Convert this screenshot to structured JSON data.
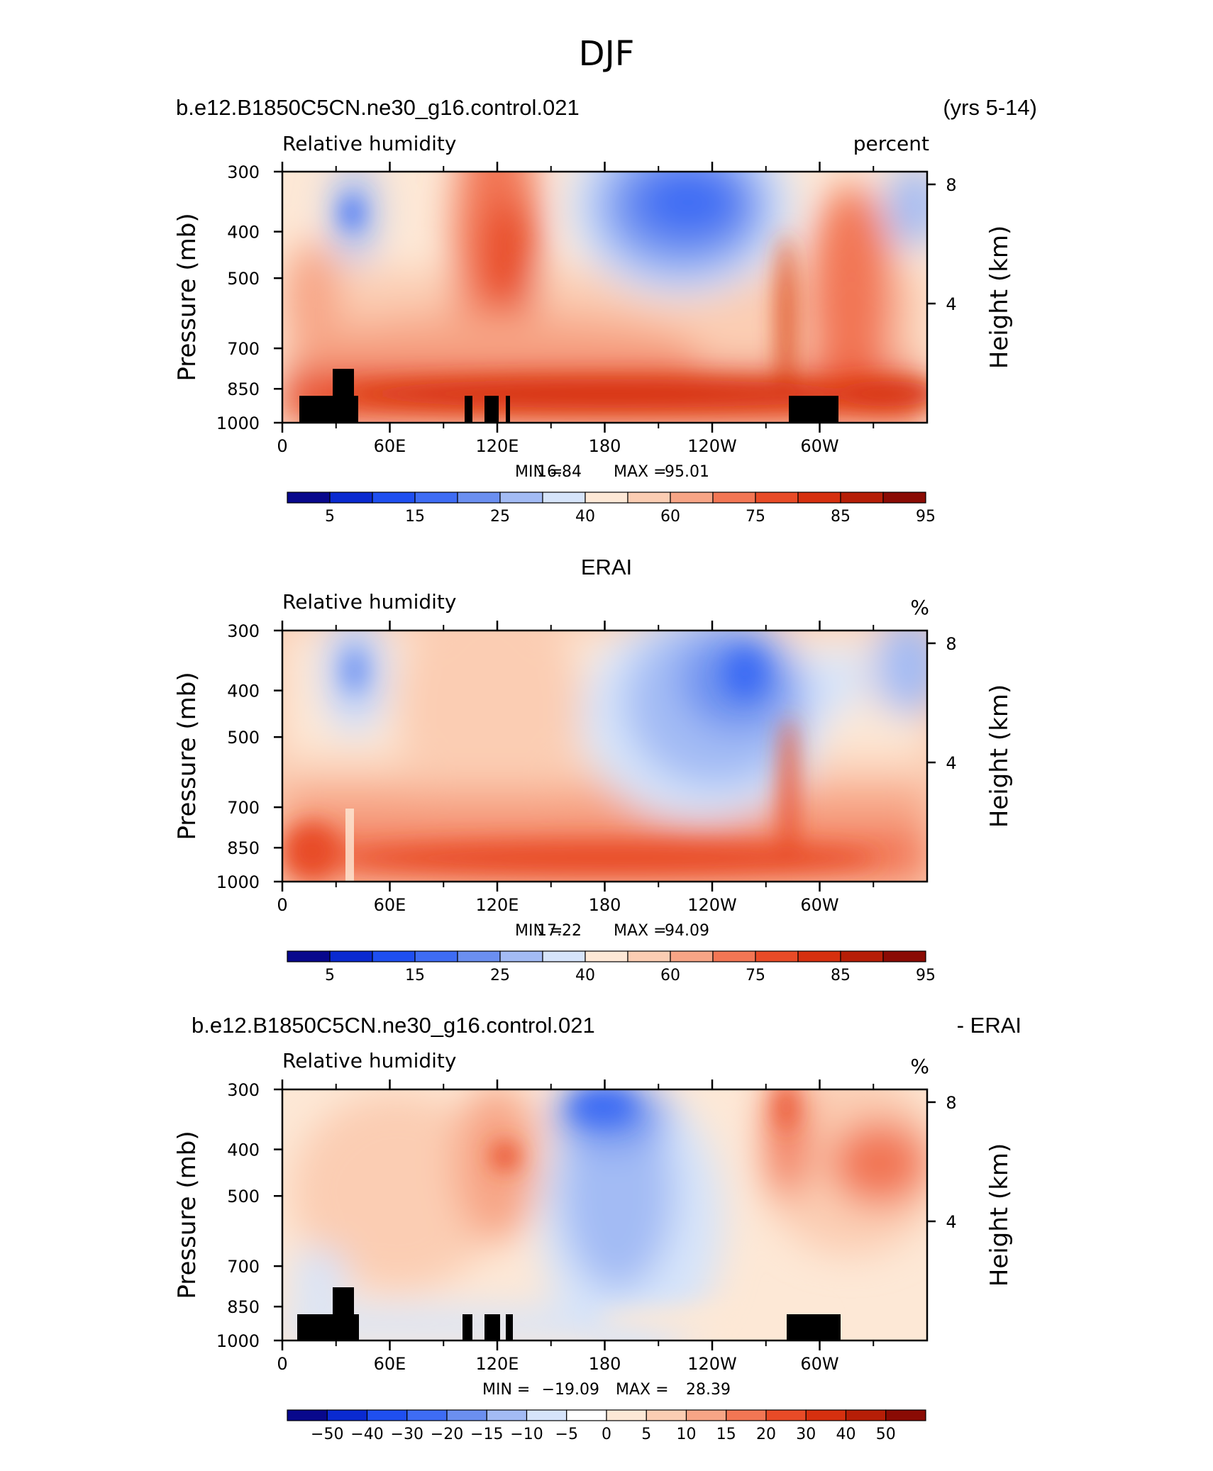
{
  "figure": {
    "title": "DJF"
  },
  "panels": [
    {
      "id": "model",
      "left_title": "b.e12.B1850C5CN.ne30_g16.control.021",
      "right_title": "(yrs 5-14)",
      "center_title": "",
      "variable": "Relative humidity",
      "units": "percent",
      "stats": {
        "min_label": "MIN =",
        "min": "16.84",
        "max_label": "MAX =",
        "max": "95.01"
      },
      "colorbar": "abs"
    },
    {
      "id": "obs",
      "left_title": "",
      "right_title": "",
      "center_title": "ERAI",
      "variable": "Relative humidity",
      "units": "%",
      "stats": {
        "min_label": "MIN =",
        "min": "17.22",
        "max_label": "MAX =",
        "max": "94.09"
      },
      "colorbar": "abs"
    },
    {
      "id": "diff",
      "left_title": "b.e12.B1850C5CN.ne30_g16.control.021",
      "right_title": "- ERAI",
      "center_title": "",
      "variable": "Relative humidity",
      "units": "%",
      "stats": {
        "min_label": "MIN =",
        "min": "−19.09",
        "max_label": "MAX =",
        "max": "28.39"
      },
      "colorbar": "diff"
    }
  ],
  "axes": {
    "ylabel_left": "Pressure (mb)",
    "ylabel_right": "Height (km)",
    "pressure_ticks": [
      {
        "value": 300,
        "label": "300"
      },
      {
        "value": 400,
        "label": "400"
      },
      {
        "value": 500,
        "label": "500"
      },
      {
        "value": 700,
        "label": "700"
      },
      {
        "value": 850,
        "label": "850"
      },
      {
        "value": 1000,
        "label": "1000"
      }
    ],
    "height_ticks": [
      {
        "value": 8,
        "label": "8"
      },
      {
        "value": 4,
        "label": "4"
      }
    ],
    "lon_ticks": [
      {
        "value": 0,
        "label": "0"
      },
      {
        "value": 60,
        "label": "60E"
      },
      {
        "value": 120,
        "label": "120E"
      },
      {
        "value": 180,
        "label": "180"
      },
      {
        "value": 240,
        "label": "120W"
      },
      {
        "value": 300,
        "label": "60W"
      }
    ],
    "lon_range": [
      0,
      360
    ],
    "pressure_range": [
      300,
      1000
    ],
    "pressure_scale": "log"
  },
  "colorbars": {
    "abs": {
      "colors": [
        "#08088c",
        "#0a2ad0",
        "#1f4ff0",
        "#3e6cf4",
        "#6b8ff0",
        "#a3bbf4",
        "#d6e4fa",
        "#fde8d6",
        "#fbcdb3",
        "#f7a586",
        "#f27654",
        "#e84b27",
        "#d6300f",
        "#b61e07",
        "#8a0b04"
      ],
      "labels": [
        {
          "index": 1,
          "text": "5"
        },
        {
          "index": 3,
          "text": "15"
        },
        {
          "index": 5,
          "text": "25"
        },
        {
          "index": 7,
          "text": "40"
        },
        {
          "index": 9,
          "text": "60"
        },
        {
          "index": 11,
          "text": "75"
        },
        {
          "index": 13,
          "text": "85"
        },
        {
          "index": 15,
          "text": "95"
        }
      ]
    },
    "diff": {
      "colors": [
        "#08088c",
        "#0a2ad0",
        "#1f4ff0",
        "#3e6cf4",
        "#6b8ff0",
        "#a3bbf4",
        "#d6e4fa",
        "#ffffff",
        "#fde8d6",
        "#fbcdb3",
        "#f7a586",
        "#f27654",
        "#e84b27",
        "#d6300f",
        "#b61e07",
        "#8a0b04"
      ],
      "labels": [
        {
          "index": 1,
          "text": "−50"
        },
        {
          "index": 2,
          "text": "−40"
        },
        {
          "index": 3,
          "text": "−30"
        },
        {
          "index": 4,
          "text": "−20"
        },
        {
          "index": 5,
          "text": "−15"
        },
        {
          "index": 6,
          "text": "−10"
        },
        {
          "index": 7,
          "text": "−5"
        },
        {
          "index": 8,
          "text": "0"
        },
        {
          "index": 9,
          "text": "5"
        },
        {
          "index": 10,
          "text": "10"
        },
        {
          "index": 11,
          "text": "15"
        },
        {
          "index": 12,
          "text": "20"
        },
        {
          "index": 13,
          "text": "30"
        },
        {
          "index": 14,
          "text": "40"
        },
        {
          "index": 15,
          "text": "50"
        }
      ]
    }
  },
  "chart_data": [
    {
      "type": "heatmap",
      "title": "Relative humidity",
      "xlabel": "",
      "ylabel": "Pressure (mb)",
      "xlim": [
        0,
        360
      ],
      "ylim": [
        1000,
        300
      ],
      "note": "values are approximate readings of filled contours",
      "lon": [
        0,
        20,
        40,
        60,
        80,
        100,
        120,
        140,
        160,
        180,
        200,
        220,
        240,
        260,
        280,
        300,
        320,
        340,
        360
      ],
      "levels": [
        300,
        400,
        500,
        600,
        700,
        800,
        850,
        925,
        1000
      ],
      "values": [
        [
          42,
          55,
          30,
          50,
          55,
          62,
          70,
          62,
          50,
          28,
          18,
          17,
          22,
          45,
          58,
          55,
          50,
          35,
          45
        ],
        [
          45,
          55,
          25,
          52,
          58,
          65,
          78,
          65,
          48,
          25,
          18,
          18,
          22,
          50,
          62,
          58,
          55,
          40,
          50
        ],
        [
          55,
          60,
          30,
          58,
          62,
          70,
          80,
          68,
          50,
          30,
          22,
          22,
          28,
          55,
          70,
          65,
          60,
          45,
          55
        ],
        [
          60,
          65,
          35,
          62,
          68,
          75,
          80,
          70,
          55,
          38,
          32,
          32,
          40,
          62,
          78,
          72,
          66,
          55,
          60
        ],
        [
          66,
          68,
          40,
          68,
          72,
          78,
          82,
          72,
          62,
          50,
          45,
          48,
          55,
          68,
          84,
          78,
          72,
          68,
          66
        ],
        [
          75,
          78,
          45,
          75,
          78,
          82,
          84,
          78,
          72,
          66,
          62,
          64,
          68,
          74,
          88,
          84,
          80,
          76,
          75
        ],
        [
          80,
          82,
          60,
          82,
          82,
          84,
          86,
          84,
          80,
          76,
          74,
          76,
          78,
          80,
          90,
          86,
          84,
          82,
          80
        ],
        [
          88,
          86,
          70,
          90,
          90,
          90,
          92,
          92,
          90,
          90,
          90,
          90,
          90,
          90,
          94,
          92,
          92,
          90,
          88
        ],
        [
          84,
          84,
          70,
          86,
          86,
          86,
          86,
          86,
          86,
          86,
          86,
          86,
          86,
          86,
          88,
          86,
          86,
          86,
          84
        ]
      ]
    },
    {
      "type": "heatmap",
      "title": "Relative humidity",
      "xlabel": "",
      "ylabel": "Pressure (mb)",
      "xlim": [
        0,
        360
      ],
      "ylim": [
        1000,
        300
      ],
      "note": "values are approximate readings of filled contours",
      "lon": [
        0,
        20,
        40,
        60,
        80,
        100,
        120,
        140,
        160,
        180,
        200,
        220,
        240,
        260,
        280,
        300,
        320,
        340,
        360
      ],
      "levels": [
        300,
        400,
        500,
        600,
        700,
        800,
        850,
        925,
        1000
      ],
      "values": [
        [
          50,
          58,
          35,
          58,
          62,
          65,
          68,
          62,
          60,
          48,
          40,
          35,
          30,
          25,
          55,
          52,
          48,
          35,
          50
        ],
        [
          48,
          56,
          22,
          56,
          60,
          62,
          65,
          62,
          58,
          45,
          38,
          30,
          22,
          18,
          52,
          50,
          45,
          30,
          48
        ],
        [
          48,
          55,
          28,
          55,
          60,
          62,
          66,
          62,
          58,
          48,
          38,
          32,
          28,
          28,
          55,
          50,
          45,
          38,
          48
        ],
        [
          58,
          60,
          42,
          60,
          62,
          65,
          70,
          64,
          60,
          52,
          42,
          38,
          35,
          42,
          62,
          56,
          52,
          48,
          58
        ],
        [
          62,
          64,
          48,
          62,
          66,
          68,
          72,
          66,
          62,
          56,
          48,
          45,
          45,
          55,
          72,
          64,
          60,
          58,
          62
        ],
        [
          72,
          74,
          50,
          72,
          74,
          76,
          78,
          74,
          70,
          66,
          62,
          60,
          62,
          68,
          82,
          76,
          72,
          70,
          72
        ],
        [
          80,
          82,
          55,
          82,
          82,
          82,
          84,
          82,
          80,
          78,
          76,
          76,
          78,
          80,
          86,
          82,
          82,
          80,
          80
        ],
        [
          86,
          86,
          60,
          88,
          88,
          88,
          88,
          88,
          88,
          88,
          88,
          88,
          88,
          88,
          90,
          88,
          88,
          88,
          86
        ],
        [
          86,
          86,
          60,
          88,
          88,
          88,
          88,
          88,
          88,
          88,
          88,
          88,
          88,
          88,
          90,
          88,
          88,
          88,
          86
        ]
      ]
    },
    {
      "type": "heatmap",
      "title": "Relative humidity",
      "xlabel": "",
      "ylabel": "Pressure (mb)",
      "xlim": [
        0,
        360
      ],
      "ylim": [
        1000,
        300
      ],
      "note": "difference field, values are approximate readings of filled contours",
      "lon": [
        0,
        20,
        40,
        60,
        80,
        100,
        120,
        140,
        160,
        180,
        200,
        220,
        240,
        260,
        280,
        300,
        320,
        340,
        360
      ],
      "levels": [
        300,
        400,
        500,
        600,
        700,
        800,
        850,
        925,
        1000
      ],
      "values": [
        [
          -5,
          4,
          3,
          6,
          6,
          8,
          10,
          4,
          -10,
          -18,
          -12,
          -8,
          -4,
          6,
          18,
          8,
          6,
          4,
          -2
        ],
        [
          -3,
          6,
          6,
          8,
          6,
          10,
          14,
          6,
          -12,
          -17,
          -14,
          -8,
          -2,
          8,
          16,
          10,
          12,
          6,
          0
        ],
        [
          4,
          10,
          6,
          10,
          6,
          12,
          18,
          8,
          -10,
          -14,
          -12,
          -6,
          2,
          10,
          14,
          14,
          20,
          10,
          4
        ],
        [
          4,
          8,
          4,
          6,
          4,
          8,
          12,
          6,
          -8,
          -12,
          -10,
          -4,
          4,
          10,
          12,
          10,
          16,
          8,
          4
        ],
        [
          3,
          6,
          3,
          4,
          4,
          6,
          8,
          4,
          -6,
          -10,
          -8,
          -4,
          4,
          10,
          12,
          8,
          10,
          6,
          3
        ],
        [
          2,
          4,
          -2,
          3,
          2,
          4,
          4,
          2,
          -4,
          -6,
          -4,
          -2,
          2,
          6,
          8,
          6,
          6,
          4,
          2
        ],
        [
          2,
          3,
          -4,
          2,
          2,
          2,
          2,
          2,
          -2,
          -2,
          -2,
          -2,
          -1,
          2,
          6,
          4,
          4,
          2,
          2
        ],
        [
          2,
          2,
          -2,
          2,
          2,
          2,
          2,
          2,
          2,
          2,
          2,
          2,
          2,
          2,
          4,
          3,
          3,
          2,
          2
        ],
        [
          -2,
          -2,
          -2,
          -2,
          -2,
          -2,
          -2,
          -2,
          2,
          2,
          2,
          2,
          2,
          2,
          2,
          2,
          2,
          2,
          -2
        ]
      ]
    }
  ]
}
